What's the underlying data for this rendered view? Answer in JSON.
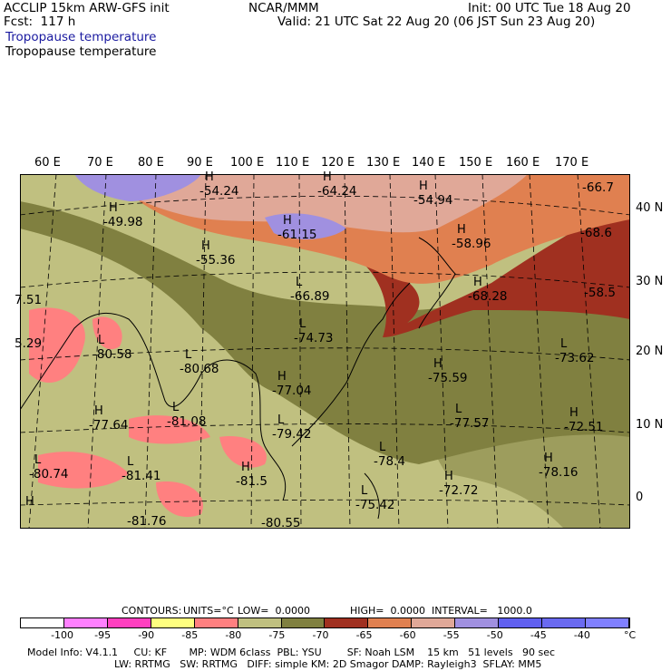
{
  "header": {
    "title": "ACCLIP 15km ARW-GFS init",
    "fcst": "Fcst:  117 h",
    "org": "NCAR/MMM",
    "init": "Init: 00 UTC Tue 18 Aug 20",
    "valid": "Valid: 21 UTC Sat 22 Aug 20 (06 JST Sun 23 Aug 20)",
    "field1": "Tropopause temperature",
    "field2": "Tropopause temperature"
  },
  "map": {
    "lon_labels": [
      "60 E",
      "70 E",
      "80 E",
      "90 E",
      "100 E",
      "110 E",
      "120 E",
      "130 E",
      "140 E",
      "150 E",
      "160 E",
      "170 E"
    ],
    "lat_labels": [
      "40 N",
      "30 N",
      "20 N",
      "10 N",
      "0"
    ],
    "annotations": [
      {
        "t": "H",
        "v": "-54.24"
      },
      {
        "t": "H",
        "v": "-64.24"
      },
      {
        "t": "H",
        "v": "-54.94"
      },
      {
        "t": "",
        "v": "-66.7"
      },
      {
        "t": "H",
        "v": "-49.98"
      },
      {
        "t": "H",
        "v": "-61.15"
      },
      {
        "t": "H",
        "v": "-58.96"
      },
      {
        "t": "",
        "v": "-68.6"
      },
      {
        "t": "H",
        "v": "-55.36"
      },
      {
        "t": "L",
        "v": "-66.89"
      },
      {
        "t": "H",
        "v": "-68.28"
      },
      {
        "t": "",
        "v": "-58.5"
      },
      {
        "t": "",
        "v": "7.51"
      },
      {
        "t": "L",
        "v": "-74.73"
      },
      {
        "t": "",
        "v": "5.29"
      },
      {
        "t": "L",
        "v": "-80.58"
      },
      {
        "t": "L",
        "v": "-80.68"
      },
      {
        "t": "L",
        "v": "-73.62"
      },
      {
        "t": "H",
        "v": "-75.59"
      },
      {
        "t": "H",
        "v": "-77.04"
      },
      {
        "t": "H",
        "v": "-77.64"
      },
      {
        "t": "L",
        "v": "-81.08"
      },
      {
        "t": "L",
        "v": "-77.57"
      },
      {
        "t": "H",
        "v": "-72.51"
      },
      {
        "t": "L",
        "v": "-79.42"
      },
      {
        "t": "L",
        "v": "-78.4"
      },
      {
        "t": "H",
        "v": "-72.72"
      },
      {
        "t": "H",
        "v": "-78.16"
      },
      {
        "t": "L",
        "v": "-80.74"
      },
      {
        "t": "L",
        "v": "-81.41"
      },
      {
        "t": "H",
        "v": "-81.5"
      },
      {
        "t": "L",
        "v": "-75.42"
      },
      {
        "t": "",
        "v": "-81.76"
      },
      {
        "t": "",
        "v": "-80.55"
      },
      {
        "t": "H",
        "v": ""
      }
    ]
  },
  "contours_line": {
    "label": "CONTOURS:",
    "units": "UNITS=°C",
    "low": "LOW=  0.0000",
    "high": "HIGH=  0.0000",
    "interval": "INTERVAL=   1000.0"
  },
  "legend": {
    "colors": [
      "#ffffff",
      "#ff80ff",
      "#ff40c0",
      "#ffff80",
      "#ff8080",
      "#c0c080",
      "#808040",
      "#a03020",
      "#e08050",
      "#e0a898",
      "#a090e0",
      "#6060f0",
      "#6a6af0",
      "#8080ff"
    ],
    "ticks": [
      "-100",
      "-95",
      "-90",
      "-85",
      "-80",
      "-75",
      "-70",
      "-65",
      "-60",
      "-55",
      "-50",
      "-45",
      "-40"
    ],
    "unit": "°C"
  },
  "footer": {
    "line1": "Model Info: V4.1.1     CU: KF       MP: WDM 6class  PBL: YSU        SF: Noah LSM    15 km   51 levels   90 sec",
    "line2": "LW: RRTMG   SW: RRTMG   DIFF: simple KM: 2D Smagor DAMP: Rayleigh3  SFLAY: MM5"
  }
}
